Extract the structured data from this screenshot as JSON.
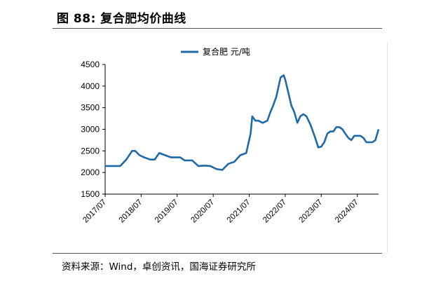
{
  "figure": {
    "title": "图 88:  复合肥均价曲线",
    "source": "资料来源：Wind，卓创资讯，国海证券研究所"
  },
  "chart_data": {
    "type": "line",
    "title": "",
    "xlabel": "",
    "ylabel": "",
    "ylim": [
      1500,
      4500
    ],
    "yticks": [
      1500,
      2000,
      2500,
      3000,
      3500,
      4000,
      4500
    ],
    "xticks": [
      "2017/07",
      "2018/07",
      "2019/07",
      "2020/07",
      "2021/07",
      "2022/07",
      "2023/07",
      "2024/07"
    ],
    "grid": false,
    "legend_position": "top-center",
    "legend_label": "复合肥   元/吨",
    "series": [
      {
        "name": "复合肥   元/吨",
        "color": "#1f6aa6",
        "x": [
          "2017-07-01",
          "2017-12-01",
          "2018-02-01",
          "2018-04-01",
          "2018-05-01",
          "2018-06-15",
          "2018-08-01",
          "2018-10-01",
          "2018-11-15",
          "2019-01-01",
          "2019-03-01",
          "2019-05-01",
          "2019-08-01",
          "2019-09-15",
          "2019-12-01",
          "2020-02-01",
          "2020-04-01",
          "2020-06-01",
          "2020-08-01",
          "2020-10-01",
          "2020-12-01",
          "2021-02-01",
          "2021-04-01",
          "2021-06-01",
          "2021-07-15",
          "2021-08-01",
          "2021-09-01",
          "2021-10-01",
          "2021-11-15",
          "2022-01-01",
          "2022-02-01",
          "2022-03-01",
          "2022-04-01",
          "2022-05-15",
          "2022-06-15",
          "2022-07-01",
          "2022-08-01",
          "2022-09-01",
          "2022-10-01",
          "2022-11-01",
          "2022-12-01",
          "2023-01-01",
          "2023-02-01",
          "2023-03-15",
          "2023-05-01",
          "2023-06-01",
          "2023-07-01",
          "2023-08-01",
          "2023-09-01",
          "2023-10-01",
          "2023-11-01",
          "2023-12-01",
          "2024-01-01",
          "2024-02-01",
          "2024-03-01",
          "2024-04-01",
          "2024-05-01",
          "2024-06-01",
          "2024-07-01",
          "2024-08-01",
          "2024-09-01",
          "2024-10-01",
          "2024-11-01",
          "2024-12-01",
          "2025-01-01",
          "2025-02-01"
        ],
        "values": [
          2150,
          2150,
          2300,
          2500,
          2500,
          2400,
          2350,
          2300,
          2300,
          2450,
          2400,
          2350,
          2350,
          2280,
          2280,
          2150,
          2160,
          2150,
          2080,
          2060,
          2200,
          2250,
          2400,
          2450,
          2900,
          3300,
          3200,
          3200,
          3150,
          3200,
          3400,
          3550,
          3750,
          4200,
          4250,
          4150,
          3850,
          3550,
          3400,
          3150,
          3300,
          3350,
          3300,
          3100,
          2800,
          2580,
          2600,
          2700,
          2900,
          2950,
          2950,
          3050,
          3050,
          3000,
          2900,
          2800,
          2750,
          2850,
          2850,
          2850,
          2800,
          2700,
          2700,
          2700,
          2750,
          3000
        ]
      }
    ]
  }
}
